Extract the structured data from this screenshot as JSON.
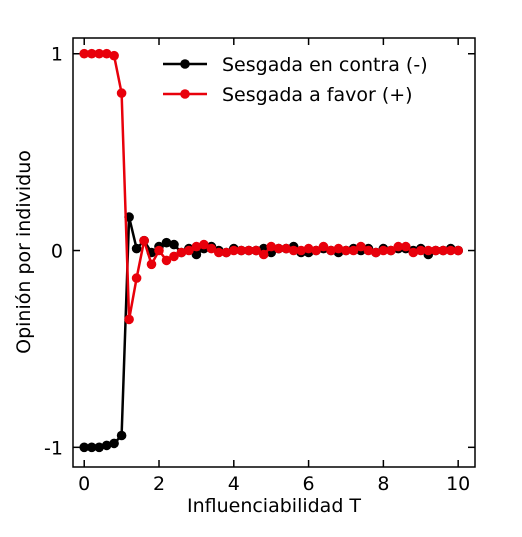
{
  "chart_data": {
    "type": "line",
    "title": "",
    "xlabel": "Influenciabilidad T",
    "ylabel": "Opinión por individuo",
    "xlim": [
      -0.3,
      10.45
    ],
    "ylim": [
      -1.1,
      1.08
    ],
    "xticks": [
      0,
      2,
      4,
      6,
      8,
      10
    ],
    "xtick_labels": [
      "0",
      "2",
      "4",
      "6",
      "8",
      "10"
    ],
    "yticks": [
      -1,
      0,
      1
    ],
    "ytick_labels": [
      "-1",
      "0",
      "1"
    ],
    "grid": false,
    "legend_position": "top-right",
    "x": [
      0,
      0.2,
      0.4,
      0.6,
      0.8,
      1.0,
      1.2,
      1.4,
      1.6,
      1.8,
      2.0,
      2.2,
      2.4,
      2.6,
      2.8,
      3.0,
      3.2,
      3.4,
      3.6,
      3.8,
      4.0,
      4.2,
      4.4,
      4.6,
      4.8,
      5.0,
      5.2,
      5.4,
      5.6,
      5.8,
      6.0,
      6.2,
      6.4,
      6.6,
      6.8,
      7.0,
      7.2,
      7.4,
      7.6,
      7.8,
      8.0,
      8.2,
      8.4,
      8.6,
      8.8,
      9.0,
      9.2,
      9.4,
      9.6,
      9.8,
      10.0
    ],
    "series": [
      {
        "name": "Sesgada en contra (-)",
        "color": "#000000",
        "values": [
          -1,
          -1,
          -1,
          -0.99,
          -0.98,
          -0.94,
          0.17,
          0.01,
          0.05,
          -0.01,
          0.02,
          0.04,
          0.03,
          -0.01,
          0.01,
          -0.02,
          0.01,
          0.02,
          0.0,
          -0.01,
          0.01,
          0.0,
          0.0,
          0.0,
          0.01,
          -0.01,
          0.01,
          0.01,
          0.02,
          -0.01,
          -0.01,
          0.0,
          0.01,
          0.0,
          -0.01,
          0.0,
          0.01,
          0.0,
          0.01,
          -0.01,
          0.01,
          0.0,
          0.01,
          0.01,
          0.0,
          0.01,
          -0.02,
          0.0,
          0.0,
          0.01,
          0.0
        ]
      },
      {
        "name": "Sesgada a favor (+)",
        "color": "#e8000b",
        "values": [
          1,
          1,
          1,
          1,
          0.99,
          0.8,
          -0.35,
          -0.14,
          0.05,
          -0.07,
          0.0,
          -0.05,
          -0.03,
          -0.01,
          0.0,
          0.02,
          0.03,
          0.01,
          -0.01,
          -0.01,
          0.0,
          0.0,
          0.0,
          0.0,
          -0.02,
          0.02,
          0.01,
          0.01,
          0.0,
          0.0,
          0.01,
          0.0,
          0.02,
          0.0,
          0.01,
          0.0,
          0.0,
          0.02,
          0.0,
          -0.01,
          0.0,
          0.0,
          0.02,
          0.02,
          -0.01,
          0.0,
          0.0,
          0.0,
          0.0,
          0.0,
          0.0
        ]
      }
    ]
  }
}
